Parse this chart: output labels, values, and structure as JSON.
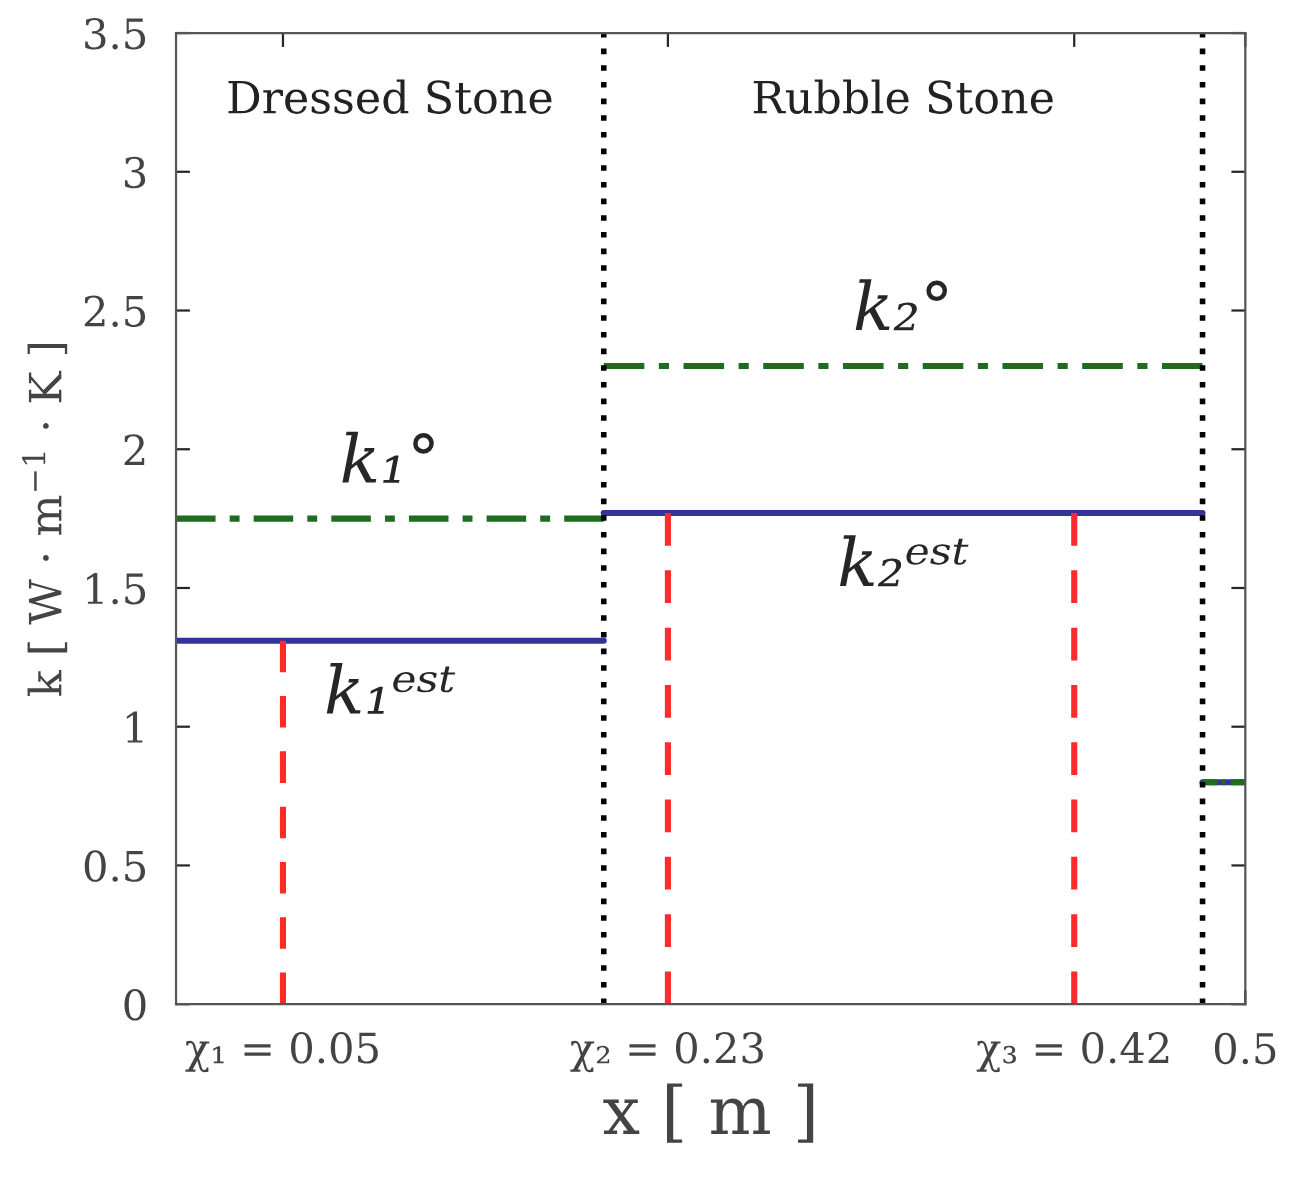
{
  "chart_data": {
    "type": "line",
    "xlabel": "x [ m ]",
    "ylabel": "k [ W · m$^{−1}$ · K ]",
    "xlim": [
      0,
      0.5
    ],
    "ylim": [
      0,
      3.5
    ],
    "xticks": [
      {
        "value": 0.05,
        "label": "χ₁ = 0.05"
      },
      {
        "value": 0.23,
        "label": "χ₂ = 0.23"
      },
      {
        "value": 0.42,
        "label": "χ₃ = 0.42"
      },
      0.5
    ],
    "yticks": [
      0,
      0.5,
      1,
      1.5,
      2,
      2.5,
      3,
      3.5
    ],
    "grid": false,
    "legend": false,
    "marker": "none",
    "series": [
      {
        "color": "#1f6b1f",
        "line_style": "dashdot",
        "x": [
          0,
          0.2
        ],
        "values": [
          1.75,
          1.75
        ]
      },
      {
        "color": "#1f6b1f",
        "line_style": "dashdot",
        "x": [
          0.2,
          0.48
        ],
        "values": [
          2.3,
          2.3
        ]
      },
      {
        "color": "#33339a",
        "line_style": "solid",
        "x": [
          0,
          0.2
        ],
        "values": [
          1.31,
          1.31
        ]
      },
      {
        "color": "#33339a",
        "line_style": "solid",
        "x": [
          0.2,
          0.48
        ],
        "values": [
          1.77,
          1.77
        ]
      },
      {
        "color": "#33339a",
        "line_style": "solid",
        "x": [
          0.48,
          0.5
        ],
        "values": [
          0.8,
          0.8
        ]
      },
      {
        "color": "#1f6b1f",
        "line_style": "dashdot",
        "x": [
          0.48,
          0.5
        ],
        "values": [
          0.8,
          0.8
        ]
      },
      {
        "color": "#ff2a2a",
        "line_style": "dashed",
        "x": [
          0.05,
          0.05
        ],
        "values": [
          0,
          1.31
        ]
      },
      {
        "color": "#ff2a2a",
        "line_style": "dashed",
        "x": [
          0.23,
          0.23
        ],
        "values": [
          0,
          1.77
        ]
      },
      {
        "color": "#ff2a2a",
        "line_style": "dashed",
        "x": [
          0.42,
          0.42
        ],
        "values": [
          0,
          1.77
        ]
      }
    ],
    "ref_lines": [
      {
        "axis": "x",
        "value": 0.2,
        "color": "#000000",
        "line_style": "dotted"
      },
      {
        "axis": "x",
        "value": 0.48,
        "color": "#000000",
        "line_style": "dotted"
      }
    ],
    "annotations": [
      "Dressed Stone",
      "Rubble Stone",
      "k₁°",
      "k₁ᵉˢᵗ",
      "k₂°",
      "k₂ᵉˢᵗ"
    ]
  }
}
